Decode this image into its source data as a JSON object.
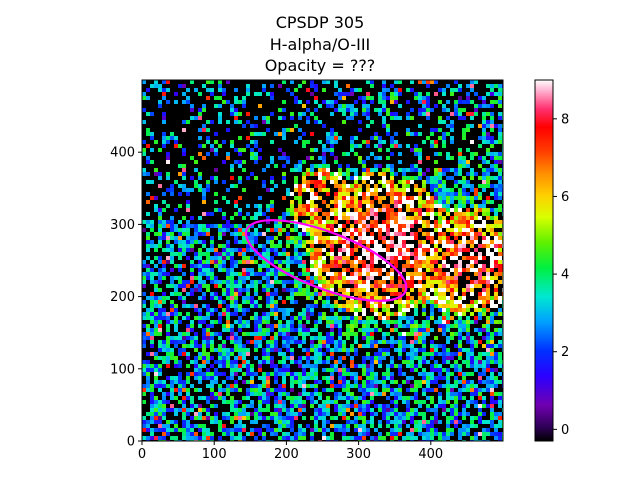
{
  "chart_data": {
    "type": "heatmap",
    "title_lines": [
      "CPSDP 305",
      "H-alpha/O-III",
      "Opacity = ???"
    ],
    "xlabel": "",
    "ylabel": "",
    "xlim": [
      0,
      500
    ],
    "ylim": [
      0,
      500
    ],
    "x_ticks": [
      0,
      100,
      200,
      300,
      400
    ],
    "y_ticks": [
      0,
      100,
      200,
      300,
      400
    ],
    "colormap": "gist_ncar-like (black-purple-blue-cyan-green-yellow-orange-red-pink-white)",
    "colorbar": {
      "min": -0.3,
      "max": 9.0,
      "ticks": [
        0,
        2,
        4,
        6,
        8
      ]
    },
    "regions": [
      {
        "name": "bright ratio cloud (upper right)",
        "x_range": [
          230,
          500
        ],
        "y_range": [
          170,
          380
        ],
        "value_range": [
          4,
          9
        ]
      },
      {
        "name": "low ratio / masked region (upper left)",
        "x_range": [
          0,
          230
        ],
        "y_range": [
          300,
          500
        ],
        "value_range": [
          -0.3,
          1
        ]
      },
      {
        "name": "mixed green-yellow noise (lower half)",
        "x_range": [
          0,
          500
        ],
        "y_range": [
          0,
          200
        ],
        "value_range": [
          1,
          5
        ]
      }
    ],
    "annotations": [
      {
        "type": "ellipse",
        "center": [
          255,
          250
        ],
        "semi_axes": [
          118,
          39
        ],
        "angle_deg": -21,
        "color": "#ff00ff"
      }
    ],
    "colors": {
      "ellipse": "#ff00ff",
      "background": "#ffffff",
      "masked": "#000000"
    }
  }
}
